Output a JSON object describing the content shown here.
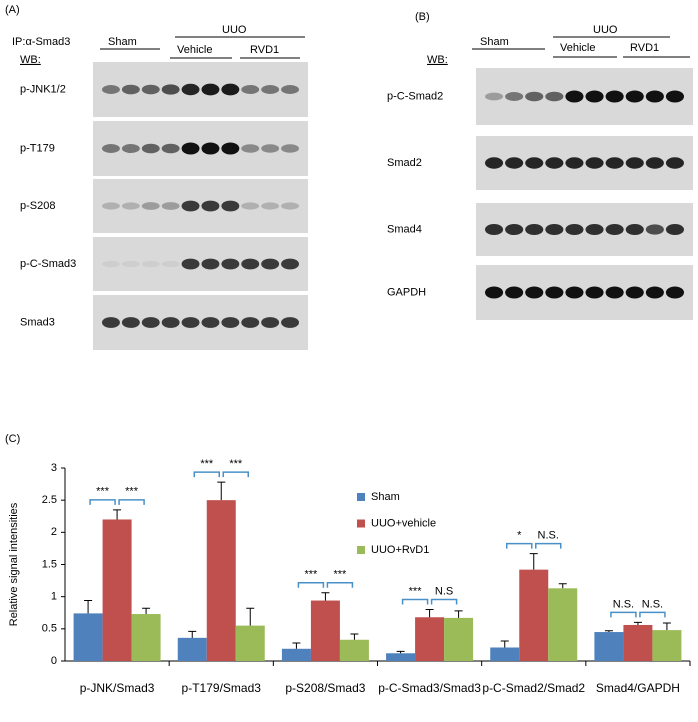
{
  "blots": {
    "panel_a": {
      "label": "(A)",
      "ip": "IP:α-Smad3",
      "wb": "WB:",
      "sham": "Sham",
      "uuo": "UUO",
      "vehicle": "Vehicle",
      "rvd1": "RVD1",
      "rows": [
        "p-JNK1/2",
        "p-T179",
        "p-S208",
        "p-C-Smad3",
        "Smad3"
      ]
    },
    "panel_b": {
      "label": "(B)",
      "wb": "WB:",
      "sham": "Sham",
      "uuo": "UUO",
      "vehicle": "Vehicle",
      "rvd1": "RVD1",
      "rows": [
        "p-C-Smad2",
        "Smad2",
        "Smad4",
        "GAPDH"
      ]
    }
  },
  "chart_data": {
    "type": "bar",
    "panel_label": "(C)",
    "y_label": "Relative signal intensities",
    "categories": [
      "p-JNK/Smad3",
      "p-T179/Smad3",
      "p-S208/Smad3",
      "p-C-Smad3/Smad3",
      "p-C-Smad2/Smad2",
      "Smad4/GAPDH"
    ],
    "series": [
      {
        "name": "Sham",
        "color": "#4f81bd",
        "values": [
          0.74,
          0.36,
          0.19,
          0.12,
          0.21,
          0.45
        ],
        "errors": [
          0.2,
          0.1,
          0.09,
          0.03,
          0.1,
          0.02
        ]
      },
      {
        "name": "UUO+vehicle",
        "color": "#c0504d",
        "values": [
          2.2,
          2.5,
          0.94,
          0.68,
          1.42,
          0.56
        ],
        "errors": [
          0.15,
          0.28,
          0.12,
          0.12,
          0.25,
          0.04
        ]
      },
      {
        "name": "UUO+RvD1",
        "color": "#9bbb59",
        "values": [
          0.73,
          0.55,
          0.33,
          0.67,
          1.13,
          0.48
        ],
        "errors": [
          0.09,
          0.27,
          0.09,
          0.11,
          0.07,
          0.11
        ]
      }
    ],
    "significance": [
      [
        "***",
        "***"
      ],
      [
        "***",
        "***"
      ],
      [
        "***",
        "***"
      ],
      [
        "***",
        "N.S"
      ],
      [
        "*",
        "N.S."
      ],
      [
        "N.S.",
        "N.S."
      ]
    ],
    "ylim": [
      0,
      3
    ],
    "yticks": [
      0,
      0.5,
      1,
      1.5,
      2,
      2.5,
      3
    ],
    "grid": false,
    "legend": "right"
  }
}
